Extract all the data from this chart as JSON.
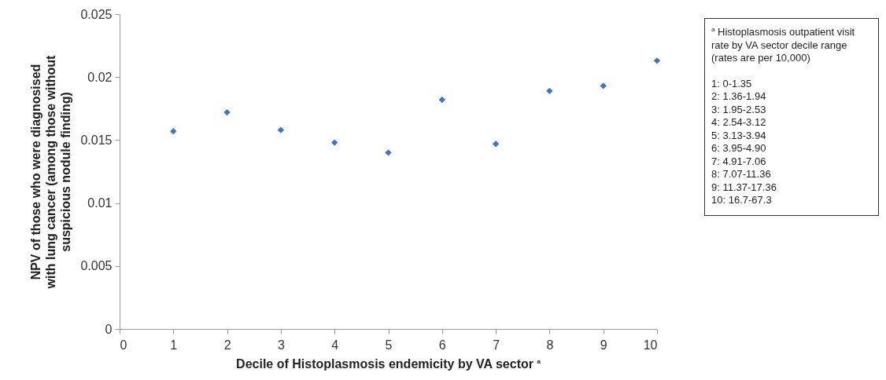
{
  "chart_data": {
    "type": "scatter",
    "xlabel": "Decile of Histoplasmosis endemicity by VA sector $^{a}$",
    "ylabel": "NPV of those who were diagnosised with lung cancer (among those without suspicious nodule finding)",
    "x": [
      1,
      2,
      3,
      4,
      5,
      6,
      7,
      8,
      9,
      10
    ],
    "series": [
      {
        "color": "#4472c4",
        "values": [
          0.0157,
          0.0172,
          0.0158,
          0.0148,
          0.014,
          0.0182,
          0.0147,
          0.0189,
          0.0193,
          0.0213
        ]
      }
    ],
    "xlim": [
      0,
      10
    ],
    "xticks": [
      0,
      1,
      2,
      3,
      4,
      5,
      6,
      7,
      8,
      9,
      10
    ],
    "ylim": [
      0,
      0.025
    ],
    "yticks": [
      0,
      0.005,
      0.01,
      0.015,
      0.02,
      0.025
    ],
    "grid": false,
    "legend": false,
    "marker": "diamond",
    "annotations": [
      "$^{a}$ Histoplasmosis outpatient visit rate by VA sector decile range (rates are per 10,000)",
      "1: 0-1.35",
      "2: 1.36-1.94",
      "3: 1.95-2.53",
      "4: 2.54-3.12",
      "5: 3.13-3.94",
      "6: 3.95-4.90",
      "7: 4.91-7.06",
      "8: 7.07-11.36",
      "9: 11.37-17.36",
      "10: 16.7-67.3"
    ]
  }
}
